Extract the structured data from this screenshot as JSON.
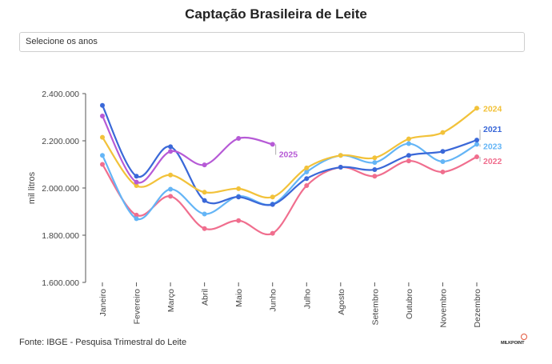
{
  "header": {
    "title": "Captação Brasileira de Leite"
  },
  "filter": {
    "placeholder": "Selecione os anos"
  },
  "footer": {
    "source": "Fonte: IBGE - Pesquisa Trimestral do Leite"
  },
  "logo": {
    "text": "MILKPOINT"
  },
  "chart_data": {
    "type": "line",
    "title": "Captação Brasileira de Leite",
    "xlabel": "",
    "ylabel": "mil litros",
    "categories": [
      "Janeiro",
      "Fevereiro",
      "Março",
      "Abril",
      "Maio",
      "Junho",
      "Julho",
      "Agosto",
      "Setembro",
      "Outubro",
      "Novembro",
      "Dezembro"
    ],
    "ylim": [
      1600000,
      2400000
    ],
    "yticks": [
      1600000,
      1800000,
      2000000,
      2200000,
      2400000
    ],
    "ytick_labels": [
      "1.600.000",
      "1.800.000",
      "2.000.000",
      "2.200.000",
      "2.400.000"
    ],
    "grid": false,
    "legend": "end-of-line labels",
    "series": [
      {
        "name": "2022",
        "color": "#f06e8e",
        "values": [
          2100000,
          1885000,
          1965000,
          1828000,
          1862000,
          1808000,
          2010000,
          2088000,
          2050000,
          2115000,
          2068000,
          2132000
        ]
      },
      {
        "name": "2023",
        "color": "#64b5f6",
        "values": [
          2138000,
          1870000,
          1995000,
          1890000,
          1965000,
          1932000,
          2068000,
          2138000,
          2108000,
          2188000,
          2112000,
          2185000
        ]
      },
      {
        "name": "2021",
        "color": "#3a68d8",
        "values": [
          2350000,
          2050000,
          2175000,
          1947000,
          1962000,
          1930000,
          2040000,
          2088000,
          2078000,
          2138000,
          2155000,
          2203000
        ]
      },
      {
        "name": "2024",
        "color": "#f2c23a",
        "values": [
          2215000,
          2010000,
          2055000,
          1982000,
          1997000,
          1962000,
          2085000,
          2138000,
          2128000,
          2208000,
          2235000,
          2338000
        ]
      },
      {
        "name": "2025",
        "color": "#b65ad6",
        "values": [
          2305000,
          2025000,
          2155000,
          2098000,
          2210000,
          2185000,
          null,
          null,
          null,
          null,
          null,
          null
        ]
      }
    ]
  }
}
